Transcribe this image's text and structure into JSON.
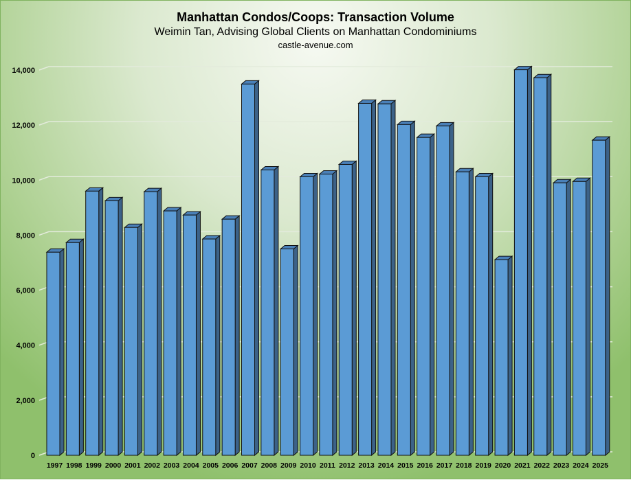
{
  "chart_data": {
    "type": "bar",
    "title": "Manhattan Condos/Coops: Transaction Volume",
    "subtitle": "Weimin Tan, Advising Global Clients on Manhattan Condominiums",
    "source": "castle-avenue.com",
    "xlabel": "",
    "ylabel": "",
    "ylim": [
      0,
      14000
    ],
    "yticks": [
      0,
      2000,
      4000,
      6000,
      8000,
      10000,
      12000,
      14000
    ],
    "ytick_labels": [
      "0",
      "2,000",
      "4,000",
      "6,000",
      "8,000",
      "10,000",
      "12,000",
      "14,000"
    ],
    "grid": true,
    "legend": "none",
    "categories": [
      "1997",
      "1998",
      "1999",
      "2000",
      "2001",
      "2002",
      "2003",
      "2004",
      "2005",
      "2006",
      "2007",
      "2008",
      "2009",
      "2010",
      "2011",
      "2012",
      "2013",
      "2014",
      "2015",
      "2016",
      "2017",
      "2018",
      "2019",
      "2020",
      "2021",
      "2022",
      "2023",
      "2024",
      "2025"
    ],
    "values": [
      7380,
      7730,
      9600,
      9250,
      8280,
      9580,
      8880,
      8730,
      7860,
      8580,
      13490,
      10370,
      7500,
      10120,
      10220,
      10570,
      12790,
      12770,
      12020,
      11550,
      11970,
      10300,
      10120,
      7110,
      14010,
      13720,
      9900,
      9950,
      11450
    ],
    "colors": {
      "bar_front": "#5b9bd5",
      "bar_side": "#3c6288",
      "bar_top": "#4a80b8",
      "grid": "#e3ebdc"
    }
  }
}
